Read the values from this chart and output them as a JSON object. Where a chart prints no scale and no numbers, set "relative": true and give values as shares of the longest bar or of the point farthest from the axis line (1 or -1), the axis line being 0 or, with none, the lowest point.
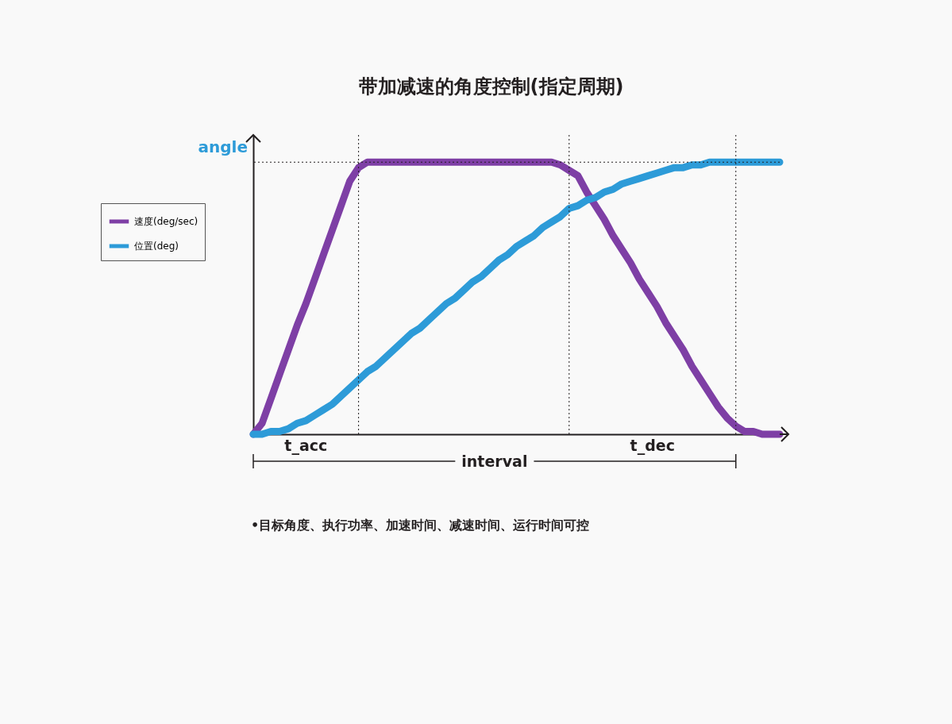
{
  "chart_data": {
    "type": "line",
    "title": "带加减速的角度控制(指定周期)",
    "ylabel": "angle",
    "relative": true,
    "legend": "left",
    "grid": true,
    "marker": "none",
    "line_style": "solid",
    "categories": [
      null,
      null,
      null,
      null,
      null,
      null,
      null,
      null,
      null,
      null,
      null,
      null,
      null,
      null,
      null,
      null,
      null,
      null,
      null,
      null,
      null,
      null,
      null,
      null,
      null,
      null,
      null,
      null,
      null,
      null,
      null,
      null,
      null,
      null,
      null,
      null,
      null,
      null,
      null,
      null,
      null,
      null,
      null,
      null,
      null,
      null,
      null,
      null,
      null,
      null,
      null,
      null,
      null,
      null,
      null,
      null,
      null,
      null,
      null,
      null,
      null
    ],
    "series": [
      {
        "name": "速度(deg/sec)",
        "color": "#7e3fa5",
        "values": [
          0,
          0.04,
          0.13,
          0.22,
          0.31,
          0.4,
          0.48,
          0.57,
          0.66,
          0.75,
          0.84,
          0.93,
          0.98,
          1,
          1,
          1,
          1,
          1,
          1,
          1,
          1,
          1,
          1,
          1,
          1,
          1,
          1,
          1,
          1,
          1,
          1,
          1,
          1,
          1,
          1,
          0.99,
          0.97,
          0.95,
          0.89,
          0.84,
          0.79,
          0.73,
          0.68,
          0.63,
          0.57,
          0.52,
          0.47,
          0.41,
          0.36,
          0.31,
          0.25,
          0.2,
          0.15,
          0.1,
          0.06,
          0.03,
          0.01,
          0.01,
          0,
          0,
          0
        ]
      },
      {
        "name": "位置(deg)",
        "color": "#2d9bd8",
        "values": [
          0,
          0,
          0.01,
          0.01,
          0.02,
          0.04,
          0.05,
          0.07,
          0.09,
          0.11,
          0.14,
          0.17,
          0.2,
          0.23,
          0.25,
          0.28,
          0.31,
          0.34,
          0.37,
          0.39,
          0.42,
          0.45,
          0.48,
          0.5,
          0.53,
          0.56,
          0.58,
          0.61,
          0.64,
          0.66,
          0.69,
          0.71,
          0.73,
          0.76,
          0.78,
          0.8,
          0.83,
          0.84,
          0.86,
          0.87,
          0.89,
          0.9,
          0.92,
          0.93,
          0.94,
          0.95,
          0.96,
          0.97,
          0.98,
          0.98,
          0.99,
          0.99,
          1,
          1,
          1,
          1,
          1,
          1,
          1,
          1,
          1
        ]
      }
    ],
    "annotations": [
      "t_acc",
      "t_dec",
      "interval",
      "•目标角度、执行功率、加速时间、减速时间、运行时间可控"
    ]
  }
}
